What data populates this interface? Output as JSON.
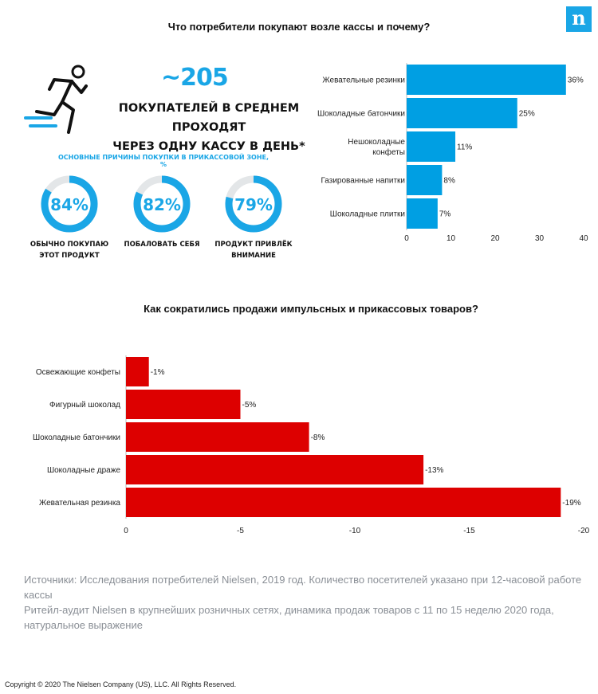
{
  "logo": "n",
  "top_title": "Что потребители покупают возле кассы и почему?",
  "bottom_title": "Как сократились продажи импульсных и прикассовых товаров?",
  "infographic": {
    "big_number": "~205",
    "headline_line1": "Покупателей в среднем проходят",
    "headline_line2": "через одну кассу в день*",
    "reasons_title": "Основные причины покупки в прикассовой зоне, %",
    "accent_color": "#1aa6e6",
    "reasons": [
      {
        "value": 84,
        "display": "84%",
        "label_line1": "Обычно покупаю",
        "label_line2": "этот продукт"
      },
      {
        "value": 82,
        "display": "82%",
        "label_line1": "Побаловать себя",
        "label_line2": ""
      },
      {
        "value": 79,
        "display": "79%",
        "label_line1": "Продукт привлёк",
        "label_line2": "внимание"
      }
    ]
  },
  "chart_data": [
    {
      "type": "bar",
      "orientation": "horizontal",
      "bar_color": "#009fe3",
      "categories": [
        [
          "Жевательные резинки"
        ],
        [
          "Шоколадные батончики"
        ],
        [
          "Нешоколадные",
          "конфеты"
        ],
        [
          "Газированные напитки"
        ],
        [
          "Шоколадные плитки"
        ]
      ],
      "values": [
        36,
        25,
        11,
        8,
        7
      ],
      "data_labels": [
        "36%",
        "25%",
        "11%",
        "8%",
        "7%"
      ],
      "xlim": [
        0,
        40
      ],
      "xticks": [
        0,
        10,
        20,
        30,
        40
      ],
      "title": "Что потребители покупают возле кассы и почему?"
    },
    {
      "type": "bar",
      "orientation": "horizontal",
      "bar_color": "#dd0000",
      "categories": [
        [
          "Освежающие конфеты"
        ],
        [
          "Фигурный шоколад"
        ],
        [
          "Шоколадные батончики"
        ],
        [
          "Шоколадные драже"
        ],
        [
          "Жевательная резинка"
        ]
      ],
      "values": [
        -1,
        -5,
        -8,
        -13,
        -19
      ],
      "data_labels": [
        "-1%",
        "-5%",
        "-8%",
        "-13%",
        "-19%"
      ],
      "xlim": [
        0,
        -20
      ],
      "xticks": [
        0,
        -5,
        -10,
        -15,
        -20
      ],
      "title": "Как сократились продажи импульсных и прикассовых товаров?"
    }
  ],
  "sources": {
    "line1": "Источники: Исследования потребителей Nielsen, 2019 год. Количество посетителей указано при 12-часовой работе кассы",
    "line2": "Ритейл-аудит Nielsen в крупнейших розничных сетях, динамика продаж товаров с 11 по 15 неделю 2020 года, натуральное выражение"
  },
  "copyright": "Copyright © 2020 The Nielsen Company (US), LLC. All Rights Reserved."
}
